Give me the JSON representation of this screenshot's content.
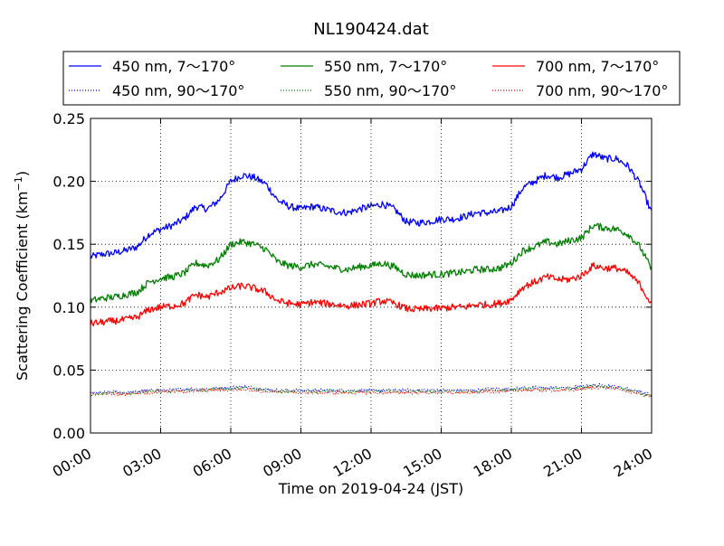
{
  "chart_data": {
    "type": "line",
    "title": "NL190424.dat",
    "xlabel": "Time on 2019-04-24 (JST)",
    "ylabel": "Scattering Coefficient (km",
    "ylabel_sup": "−1",
    "ylabel_close": ")",
    "xlim_hours": [
      0,
      24
    ],
    "ylim": [
      0.0,
      0.25
    ],
    "x_ticks": [
      "00:00",
      "03:00",
      "06:00",
      "09:00",
      "12:00",
      "15:00",
      "18:00",
      "21:00",
      "24:00"
    ],
    "y_ticks": [
      "0.00",
      "0.05",
      "0.10",
      "0.15",
      "0.20",
      "0.25"
    ],
    "grid": true,
    "legend_position": "top",
    "x_hours": [
      0,
      0.5,
      1,
      1.5,
      2,
      2.5,
      3,
      3.5,
      4,
      4.5,
      5,
      5.5,
      6,
      6.5,
      7,
      7.5,
      8,
      8.5,
      9,
      9.5,
      10,
      10.5,
      11,
      11.5,
      12,
      12.5,
      13,
      13.5,
      14,
      14.5,
      15,
      15.5,
      16,
      16.5,
      17,
      17.5,
      18,
      18.5,
      19,
      19.5,
      20,
      20.5,
      21,
      21.5,
      22,
      22.5,
      23,
      23.5,
      24
    ],
    "series": [
      {
        "name": "450 nm, 7～170°",
        "color": "#0000ff",
        "style": "solid",
        "values": [
          0.14,
          0.142,
          0.143,
          0.145,
          0.148,
          0.158,
          0.162,
          0.165,
          0.17,
          0.18,
          0.178,
          0.185,
          0.2,
          0.205,
          0.203,
          0.198,
          0.185,
          0.18,
          0.178,
          0.18,
          0.178,
          0.176,
          0.175,
          0.178,
          0.18,
          0.182,
          0.178,
          0.168,
          0.167,
          0.168,
          0.17,
          0.17,
          0.172,
          0.175,
          0.175,
          0.176,
          0.18,
          0.195,
          0.2,
          0.205,
          0.203,
          0.206,
          0.21,
          0.222,
          0.218,
          0.218,
          0.212,
          0.198,
          0.175
        ]
      },
      {
        "name": "450 nm, 90～170°",
        "color": "#0000ff",
        "style": "dotted",
        "values": [
          0.032,
          0.032,
          0.033,
          0.032,
          0.033,
          0.034,
          0.034,
          0.034,
          0.035,
          0.035,
          0.035,
          0.036,
          0.036,
          0.037,
          0.036,
          0.035,
          0.034,
          0.034,
          0.034,
          0.034,
          0.034,
          0.034,
          0.034,
          0.034,
          0.034,
          0.034,
          0.034,
          0.034,
          0.034,
          0.034,
          0.034,
          0.034,
          0.034,
          0.034,
          0.035,
          0.035,
          0.035,
          0.036,
          0.036,
          0.036,
          0.036,
          0.036,
          0.037,
          0.038,
          0.038,
          0.037,
          0.035,
          0.033,
          0.03
        ]
      },
      {
        "name": "550 nm, 7～170°",
        "color": "#008000",
        "style": "solid",
        "values": [
          0.105,
          0.107,
          0.108,
          0.11,
          0.112,
          0.12,
          0.123,
          0.124,
          0.127,
          0.135,
          0.133,
          0.138,
          0.15,
          0.152,
          0.15,
          0.146,
          0.136,
          0.133,
          0.132,
          0.134,
          0.133,
          0.131,
          0.13,
          0.132,
          0.133,
          0.135,
          0.132,
          0.126,
          0.125,
          0.126,
          0.126,
          0.127,
          0.128,
          0.13,
          0.13,
          0.131,
          0.135,
          0.145,
          0.148,
          0.152,
          0.15,
          0.153,
          0.155,
          0.165,
          0.163,
          0.162,
          0.158,
          0.148,
          0.13
        ]
      },
      {
        "name": "550 nm, 90～170°",
        "color": "#008000",
        "style": "dotted",
        "values": [
          0.031,
          0.031,
          0.032,
          0.031,
          0.032,
          0.033,
          0.033,
          0.033,
          0.034,
          0.034,
          0.034,
          0.035,
          0.035,
          0.036,
          0.035,
          0.034,
          0.033,
          0.033,
          0.033,
          0.033,
          0.033,
          0.033,
          0.033,
          0.033,
          0.033,
          0.033,
          0.033,
          0.033,
          0.033,
          0.033,
          0.033,
          0.033,
          0.033,
          0.033,
          0.034,
          0.034,
          0.034,
          0.035,
          0.035,
          0.035,
          0.035,
          0.035,
          0.036,
          0.037,
          0.037,
          0.036,
          0.034,
          0.032,
          0.029
        ]
      },
      {
        "name": "700 nm, 7～170°",
        "color": "#ff0000",
        "style": "solid",
        "values": [
          0.087,
          0.088,
          0.089,
          0.09,
          0.092,
          0.098,
          0.1,
          0.101,
          0.103,
          0.11,
          0.108,
          0.112,
          0.115,
          0.117,
          0.115,
          0.112,
          0.105,
          0.103,
          0.102,
          0.104,
          0.103,
          0.102,
          0.101,
          0.102,
          0.103,
          0.105,
          0.103,
          0.099,
          0.098,
          0.099,
          0.099,
          0.1,
          0.1,
          0.102,
          0.102,
          0.103,
          0.106,
          0.116,
          0.12,
          0.124,
          0.122,
          0.122,
          0.125,
          0.133,
          0.131,
          0.131,
          0.127,
          0.118,
          0.102
        ]
      },
      {
        "name": "700 nm, 90～170°",
        "color": "#ff0000",
        "style": "dotted",
        "values": [
          0.031,
          0.031,
          0.031,
          0.031,
          0.032,
          0.032,
          0.033,
          0.033,
          0.033,
          0.033,
          0.034,
          0.034,
          0.034,
          0.035,
          0.034,
          0.033,
          0.033,
          0.032,
          0.032,
          0.032,
          0.032,
          0.032,
          0.032,
          0.032,
          0.032,
          0.032,
          0.032,
          0.032,
          0.032,
          0.032,
          0.032,
          0.032,
          0.032,
          0.032,
          0.033,
          0.033,
          0.033,
          0.034,
          0.034,
          0.034,
          0.034,
          0.034,
          0.035,
          0.036,
          0.036,
          0.035,
          0.033,
          0.031,
          0.029
        ]
      }
    ]
  }
}
